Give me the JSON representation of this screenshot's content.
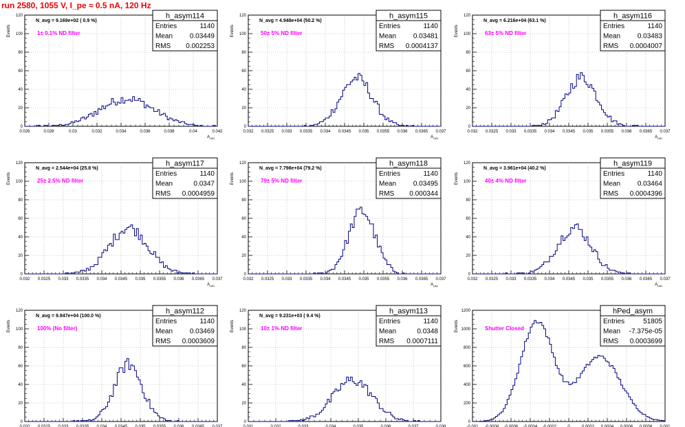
{
  "title": "run 2580,  1055 V, I_pe ≈ 0.5 nA, 120 Hz",
  "chart_data": [
    {
      "type": "histogram",
      "name": "h_asym114",
      "stats": {
        "entries": "1140",
        "mean": "0.03449",
        "rms": "0.002253"
      },
      "navg": "N_avg = 9.169e+02 ( 0.9 %)",
      "filter": "1± 0.1% ND filter",
      "ylabel": "Events",
      "xlabel": "A_UID",
      "xlim": [
        0.026,
        0.042
      ],
      "ylim": [
        0,
        120
      ],
      "xticks": [
        "0.026",
        "0.028",
        "0.03",
        "0.032",
        "0.034",
        "0.036",
        "0.038",
        "0.04",
        "0.042"
      ],
      "yticks": [
        "0",
        "20",
        "40",
        "60",
        "80",
        "100",
        "120"
      ],
      "mu": 0.0345,
      "sigma": 0.00225,
      "peak": 30,
      "nbins": 100
    },
    {
      "type": "histogram",
      "name": "h_asym115",
      "stats": {
        "entries": "1140",
        "mean": "0.03481",
        "rms": "0.0004137"
      },
      "navg": "N_avg = 4.948e+04 (50.2 %)",
      "filter": "50± 5% ND filter",
      "ylabel": "Events",
      "xlabel": "A_UID",
      "xlim": [
        0.032,
        0.037
      ],
      "ylim": [
        0,
        120
      ],
      "xticks": [
        "0.032",
        "0.0325",
        "0.033",
        "0.0335",
        "0.034",
        "0.0345",
        "0.035",
        "0.0355",
        "0.036",
        "0.0365",
        "0.037"
      ],
      "yticks": [
        "0",
        "20",
        "40",
        "60",
        "80",
        "100",
        "120"
      ],
      "mu": 0.03481,
      "sigma": 0.00041,
      "peak": 52,
      "nbins": 100
    },
    {
      "type": "histogram",
      "name": "h_asym116",
      "stats": {
        "entries": "1140",
        "mean": "0.03483",
        "rms": "0.0004007"
      },
      "navg": "N_avg = 6.216e+04 (63.1 %)",
      "filter": "63± 5% ND filter",
      "ylabel": "Events",
      "xlabel": "A_UID",
      "xlim": [
        0.032,
        0.037
      ],
      "ylim": [
        0,
        120
      ],
      "xticks": [
        "0.032",
        "0.0325",
        "0.033",
        "0.0335",
        "0.034",
        "0.0345",
        "0.035",
        "0.0355",
        "0.036",
        "0.0365",
        "0.037"
      ],
      "yticks": [
        "0",
        "20",
        "40",
        "60",
        "80",
        "100",
        "120"
      ],
      "mu": 0.03483,
      "sigma": 0.0004,
      "peak": 53,
      "nbins": 100
    },
    {
      "type": "histogram",
      "name": "h_asym117",
      "stats": {
        "entries": "1140",
        "mean": "0.0347",
        "rms": "0.0004959"
      },
      "navg": "N_avg = 2.544e+04 (25.8 %)",
      "filter": "25± 2.5% ND filter",
      "ylabel": "Events",
      "xlabel": "A_UID",
      "xlim": [
        0.032,
        0.037
      ],
      "ylim": [
        0,
        120
      ],
      "xticks": [
        "0.032",
        "0.0325",
        "0.033",
        "0.0335",
        "0.034",
        "0.0345",
        "0.035",
        "0.0355",
        "0.036",
        "0.0365",
        "0.037"
      ],
      "yticks": [
        "0",
        "20",
        "40",
        "60",
        "80",
        "100",
        "120"
      ],
      "mu": 0.0347,
      "sigma": 0.0005,
      "peak": 50,
      "nbins": 100
    },
    {
      "type": "histogram",
      "name": "h_asym118",
      "stats": {
        "entries": "1140",
        "mean": "0.03495",
        "rms": "0.000344"
      },
      "navg": "N_avg = 7.798e+04 (79.2 %)",
      "filter": "79± 5% ND filter",
      "ylabel": "Events",
      "xlabel": "A_UID",
      "xlim": [
        0.032,
        0.037
      ],
      "ylim": [
        0,
        120
      ],
      "xticks": [
        "0.032",
        "0.0325",
        "0.033",
        "0.0335",
        "0.034",
        "0.0345",
        "0.035",
        "0.0355",
        "0.036",
        "0.0365",
        "0.037"
      ],
      "yticks": [
        "0",
        "20",
        "40",
        "60",
        "80",
        "100",
        "120"
      ],
      "mu": 0.03495,
      "sigma": 0.000344,
      "peak": 68,
      "nbins": 100
    },
    {
      "type": "histogram",
      "name": "h_asym119",
      "stats": {
        "entries": "1140",
        "mean": "0.03464",
        "rms": "0.0004396"
      },
      "navg": "N_avg = 3.961e+04 (40.2 %)",
      "filter": "40± 4% ND filter",
      "ylabel": "Events",
      "xlabel": "A_UID",
      "xlim": [
        0.032,
        0.037
      ],
      "ylim": [
        0,
        120
      ],
      "xticks": [
        "0.032",
        "0.0325",
        "0.033",
        "0.0335",
        "0.034",
        "0.0345",
        "0.035",
        "0.0355",
        "0.036",
        "0.0365",
        "0.037"
      ],
      "yticks": [
        "0",
        "20",
        "40",
        "60",
        "80",
        "100",
        "120"
      ],
      "mu": 0.03464,
      "sigma": 0.00044,
      "peak": 50,
      "nbins": 100
    },
    {
      "type": "histogram",
      "name": "h_asym112",
      "stats": {
        "entries": "1140",
        "mean": "0.03469",
        "rms": "0.0003609"
      },
      "navg": "N_avg = 9.847e+04 (100.0 %)",
      "filter": "100% (No filter)",
      "ylabel": "Events",
      "xlabel": "A_UID",
      "xlim": [
        0.032,
        0.037
      ],
      "ylim": [
        0,
        120
      ],
      "xticks": [
        "0.032",
        "0.0325",
        "0.033",
        "0.0335",
        "0.034",
        "0.0345",
        "0.035",
        "0.0355",
        "0.036",
        "0.0365",
        "0.037"
      ],
      "yticks": [
        "0",
        "20",
        "40",
        "60",
        "80",
        "100",
        "120"
      ],
      "mu": 0.03469,
      "sigma": 0.00036,
      "peak": 62,
      "nbins": 100
    },
    {
      "type": "histogram",
      "name": "h_asym113",
      "stats": {
        "entries": "1140",
        "mean": "0.0348",
        "rms": "0.0007111"
      },
      "navg": "N_avg = 9.231e+03 ( 9.4 %)",
      "filter": "10± 1% ND filter",
      "ylabel": "Events",
      "xlabel": "A_UID",
      "xlim": [
        0.031,
        0.038
      ],
      "ylim": [
        0,
        120
      ],
      "xticks": [
        "0.031",
        "0.032",
        "0.033",
        "0.034",
        "0.035",
        "0.036",
        "0.037",
        "0.038"
      ],
      "yticks": [
        "0",
        "20",
        "40",
        "60",
        "80",
        "100",
        "120"
      ],
      "mu": 0.0348,
      "sigma": 0.00071,
      "peak": 45,
      "nbins": 100
    },
    {
      "type": "histogram",
      "name": "hPed_asym",
      "stats": {
        "entries": "51805",
        "mean": "-7.375e-05",
        "rms": "0.0003699"
      },
      "navg": "",
      "filter": "Shutter Closed",
      "ylabel": "Events",
      "xlabel": "A_UID",
      "xlim": [
        -0.001,
        0.001
      ],
      "ylim": [
        0,
        1200
      ],
      "xticks": [
        "-0.001",
        "-0.0008",
        "-0.0006",
        "-0.0004",
        "-0.0002",
        "0",
        "0.0002",
        "0.0004",
        "0.0006",
        "0.0008",
        "0.001"
      ],
      "yticks": [
        "0",
        "200",
        "400",
        "600",
        "800",
        "1000",
        "1200"
      ],
      "mu": -0.00033,
      "sigma": 0.00017,
      "peak": 1080,
      "mu2": 0.00032,
      "sigma2": 0.00022,
      "peak2": 700,
      "nbins": 100
    }
  ]
}
